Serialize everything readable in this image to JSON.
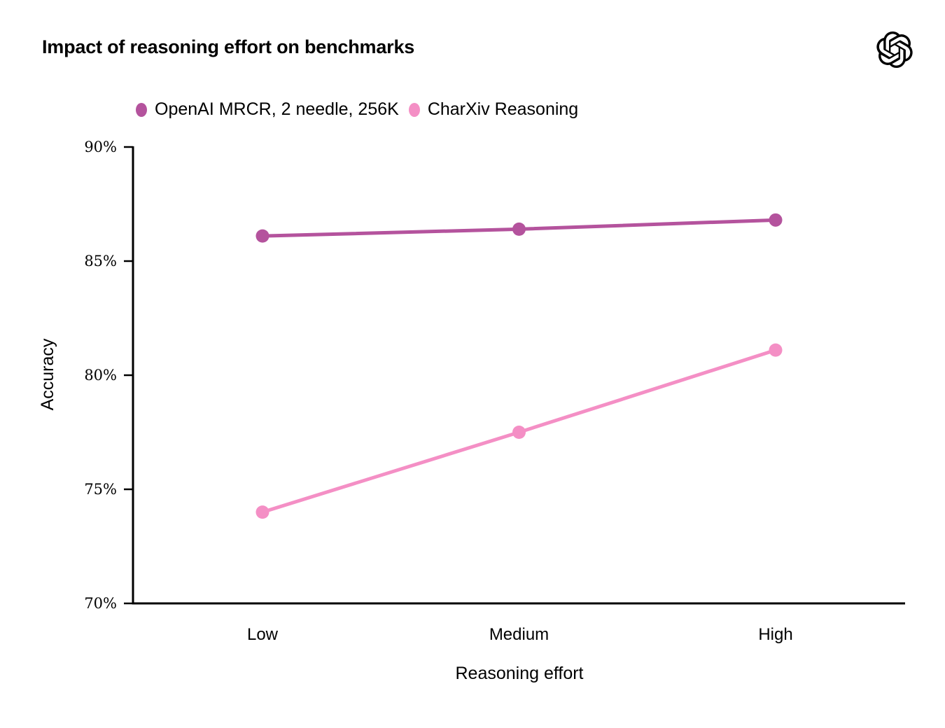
{
  "header": {
    "title": "Impact of reasoning effort on benchmarks",
    "logo": "openai-logo"
  },
  "chart_data": {
    "type": "line",
    "categories": [
      "Low",
      "Medium",
      "High"
    ],
    "series": [
      {
        "name": "OpenAI MRCR, 2 needle, 256K",
        "values": [
          86.1,
          86.4,
          86.8
        ],
        "color": "#b4539d"
      },
      {
        "name": "CharXiv Reasoning",
        "values": [
          74.0,
          77.5,
          81.1
        ],
        "color": "#f48fc5"
      }
    ],
    "xlabel": "Reasoning effort",
    "ylabel": "Accuracy",
    "ylim": [
      70,
      90
    ],
    "yticks": [
      70,
      75,
      80,
      85,
      90
    ],
    "ytick_suffix": "%",
    "grid": false,
    "legend_position": "top-left",
    "axis_color": "#000000",
    "text_color": "#000000",
    "background": "#ffffff"
  }
}
